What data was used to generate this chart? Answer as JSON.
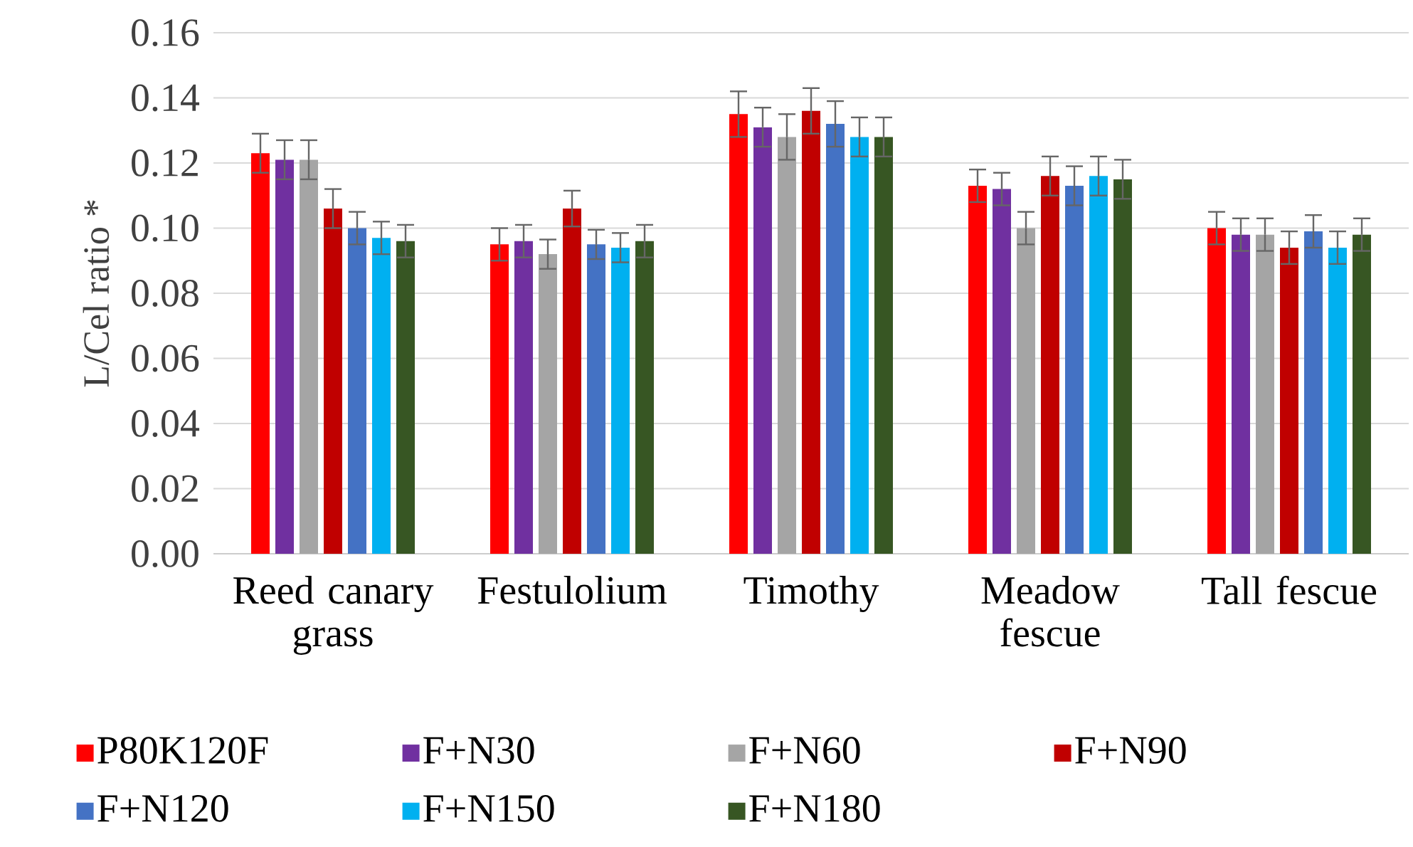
{
  "chart_data": {
    "type": "bar",
    "ylabel": "L/Cel ratio *",
    "categories": [
      "Reed canary grass",
      "Festulolium",
      "Timothy",
      "Meadow fescue",
      "Tall fescue"
    ],
    "ylim": [
      0,
      0.16
    ],
    "yticks": [
      {
        "value": 0,
        "label": "0.00"
      },
      {
        "value": 0.02,
        "label": "0.02"
      },
      {
        "value": 0.04,
        "label": "0.04"
      },
      {
        "value": 0.06,
        "label": "0.06"
      },
      {
        "value": 0.08,
        "label": "0.08"
      },
      {
        "value": 0.1,
        "label": "0.10"
      },
      {
        "value": 0.12,
        "label": "0.12"
      },
      {
        "value": 0.14,
        "label": "0.14"
      },
      {
        "value": 0.16,
        "label": "0.16"
      }
    ],
    "grid": "y",
    "legend": "bottom",
    "series": [
      {
        "name": "P80K120F",
        "color": "#ff0000",
        "values": [
          0.123,
          0.095,
          0.135,
          0.113,
          0.1
        ],
        "errors": [
          0.006,
          0.005,
          0.007,
          0.005,
          0.005
        ]
      },
      {
        "name": "F+N30",
        "color": "#7030a0",
        "values": [
          0.121,
          0.096,
          0.131,
          0.112,
          0.098
        ],
        "errors": [
          0.006,
          0.005,
          0.006,
          0.005,
          0.005
        ]
      },
      {
        "name": "F+N60",
        "color": "#a5a5a5",
        "values": [
          0.121,
          0.092,
          0.128,
          0.1,
          0.098
        ],
        "errors": [
          0.006,
          0.0045,
          0.007,
          0.005,
          0.005
        ]
      },
      {
        "name": "F+N90",
        "color": "#c00000",
        "values": [
          0.106,
          0.106,
          0.136,
          0.116,
          0.094
        ],
        "errors": [
          0.006,
          0.0055,
          0.007,
          0.006,
          0.005
        ]
      },
      {
        "name": "F+N120",
        "color": "#4472c4",
        "values": [
          0.1,
          0.095,
          0.132,
          0.113,
          0.099
        ],
        "errors": [
          0.005,
          0.0045,
          0.007,
          0.006,
          0.005
        ]
      },
      {
        "name": "F+N150",
        "color": "#00b0f0",
        "values": [
          0.097,
          0.094,
          0.128,
          0.116,
          0.094
        ],
        "errors": [
          0.005,
          0.0045,
          0.006,
          0.006,
          0.005
        ]
      },
      {
        "name": "F+N180",
        "color": "#375623",
        "values": [
          0.096,
          0.096,
          0.128,
          0.115,
          0.098
        ],
        "errors": [
          0.005,
          0.005,
          0.006,
          0.006,
          0.005
        ]
      }
    ]
  }
}
